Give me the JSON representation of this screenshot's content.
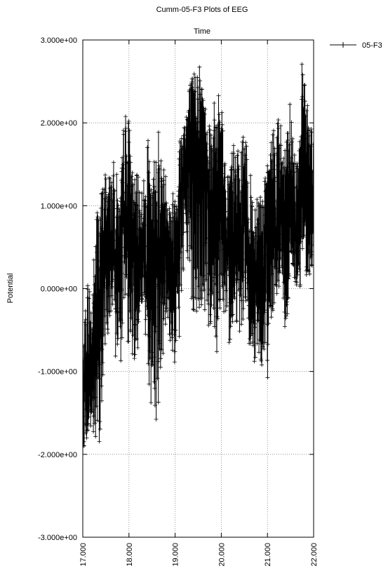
{
  "chart_data": {
    "type": "line",
    "title": "Cumm-05-F3 Plots of EEG",
    "subtitle": "Time",
    "xlabel": "",
    "ylabel": "Potential",
    "xlim": [
      17.0,
      22.0
    ],
    "ylim": [
      -3.0,
      3.0
    ],
    "x_ticks": [
      17.0,
      18.0,
      19.0,
      20.0,
      21.0,
      22.0
    ],
    "x_tick_labels": [
      "17.000",
      "18.000",
      "19.000",
      "20.000",
      "21.000",
      "22.000"
    ],
    "y_ticks": [
      -3.0,
      -2.0,
      -1.0,
      0.0,
      1.0,
      2.0,
      3.0
    ],
    "y_tick_labels": [
      "-3.000e+00",
      "-2.000e+00",
      "-1.000e+00",
      "0.000e+00",
      "1.000e+00",
      "2.000e+00",
      "3.000e+00"
    ],
    "grid": true,
    "legend_position": "top-right",
    "marker": "plus",
    "colors": {
      "series": "#000000",
      "grid": "#7f7f7f",
      "axes": "#000000"
    },
    "series": [
      {
        "name": "05-F3",
        "x": [
          17.0,
          17.1,
          17.2,
          17.3,
          17.4,
          17.5,
          17.6,
          17.7,
          17.8,
          17.9,
          18.0,
          18.1,
          18.2,
          18.3,
          18.4,
          18.5,
          18.6,
          18.7,
          18.8,
          18.9,
          19.0,
          19.1,
          19.2,
          19.3,
          19.4,
          19.5,
          19.6,
          19.7,
          19.8,
          19.9,
          20.0,
          20.1,
          20.2,
          20.3,
          20.4,
          20.5,
          20.6,
          20.7,
          20.8,
          20.9,
          21.0,
          21.1,
          21.2,
          21.3,
          21.4,
          21.5,
          21.6,
          21.7,
          21.8,
          21.9,
          22.0
        ],
        "y": [
          -1.4,
          -0.9,
          -1.2,
          -0.6,
          0.2,
          0.5,
          0.6,
          0.3,
          0.5,
          0.9,
          0.8,
          0.5,
          0.3,
          0.6,
          -0.2,
          0.4,
          0.2,
          0.7,
          0.6,
          0.3,
          0.2,
          1.0,
          1.5,
          1.6,
          1.8,
          1.7,
          1.9,
          1.3,
          0.9,
          1.0,
          1.5,
          0.6,
          0.3,
          0.7,
          0.4,
          1.0,
          0.2,
          -0.2,
          0.4,
          0.1,
          0.8,
          1.0,
          0.6,
          0.9,
          0.5,
          1.2,
          0.6,
          0.9,
          1.6,
          1.0,
          0.8
        ],
        "envelope_min": [
          -1.9,
          -1.9,
          -1.7,
          -2.2,
          -1.6,
          -0.6,
          -0.5,
          -0.8,
          -1.1,
          -0.2,
          -0.8,
          -0.9,
          -0.7,
          -0.1,
          -1.1,
          -1.5,
          -1.7,
          -0.9,
          -0.6,
          -0.7,
          -1.0,
          -0.6,
          0.1,
          0.3,
          -0.7,
          -0.4,
          -0.3,
          -0.6,
          -0.4,
          -0.8,
          0.0,
          -0.8,
          -0.6,
          -0.3,
          -0.6,
          -0.3,
          -0.8,
          -0.9,
          -1.0,
          -0.9,
          -1.1,
          -0.3,
          -0.1,
          0.1,
          -0.7,
          0.3,
          0.0,
          0.0,
          0.2,
          0.1,
          0.2
        ],
        "envelope_max": [
          -0.8,
          0.2,
          0.0,
          1.1,
          1.2,
          1.5,
          1.4,
          1.6,
          1.0,
          2.2,
          2.1,
          1.3,
          1.4,
          1.2,
          1.9,
          1.1,
          2.3,
          1.6,
          1.4,
          1.1,
          1.3,
          1.9,
          2.1,
          2.5,
          2.6,
          2.9,
          2.4,
          2.1,
          2.2,
          2.3,
          2.5,
          1.3,
          1.7,
          1.8,
          1.6,
          2.0,
          1.4,
          1.3,
          1.3,
          1.2,
          1.5,
          1.9,
          2.2,
          2.0,
          1.7,
          2.4,
          1.5,
          2.6,
          2.9,
          2.2,
          1.8
        ]
      }
    ]
  }
}
